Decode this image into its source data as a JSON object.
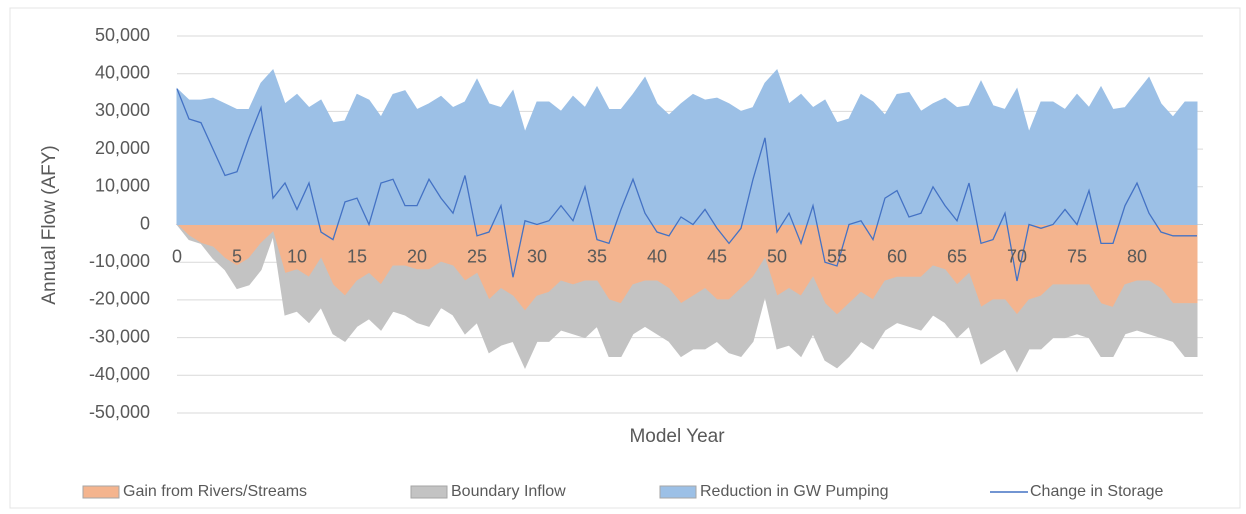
{
  "chart_data": {
    "type": "area",
    "y_label": "Annual Flow (AFY)",
    "x_label": "Model Year",
    "x": [
      0,
      1,
      2,
      3,
      4,
      5,
      6,
      7,
      8,
      9,
      10,
      11,
      12,
      13,
      14,
      15,
      16,
      17,
      18,
      19,
      20,
      21,
      22,
      23,
      24,
      25,
      26,
      27,
      28,
      29,
      30,
      31,
      32,
      33,
      34,
      35,
      36,
      37,
      38,
      39,
      40,
      41,
      42,
      43,
      44,
      45,
      46,
      47,
      48,
      49,
      50,
      51,
      52,
      53,
      54,
      55,
      56,
      57,
      58,
      59,
      60,
      61,
      62,
      63,
      64,
      65,
      66,
      67,
      68,
      69,
      70,
      71,
      72,
      73,
      74,
      75,
      76,
      77,
      78,
      79,
      80,
      81,
      82,
      83,
      84,
      85
    ],
    "xlim": [
      0,
      85
    ],
    "xticks": [
      0,
      5,
      10,
      15,
      20,
      25,
      30,
      35,
      40,
      45,
      50,
      55,
      60,
      65,
      70,
      75,
      80
    ],
    "ylim": [
      -50000,
      50000
    ],
    "yticks": [
      {
        "value": -50000,
        "label": "-50,000"
      },
      {
        "value": -40000,
        "label": "-40,000"
      },
      {
        "value": -30000,
        "label": "-30,000"
      },
      {
        "value": -20000,
        "label": "-20,000"
      },
      {
        "value": -10000,
        "label": "-10,000"
      },
      0,
      {
        "value": 10000,
        "label": "10,000"
      },
      {
        "value": 20000,
        "label": "20,000"
      },
      {
        "value": 30000,
        "label": "30,000"
      },
      {
        "value": 40000,
        "label": "40,000"
      },
      {
        "value": 50000,
        "label": "50,000"
      }
    ],
    "grid": true,
    "legend": "bottom",
    "series": [
      {
        "name": "Gain from Rivers/Streams",
        "color": "#f4b48e",
        "stack": "negative",
        "values": [
          0,
          -3000,
          -5000,
          -6000,
          -9000,
          -11000,
          -9000,
          -5000,
          -2000,
          -13000,
          -12000,
          -14000,
          -9000,
          -16000,
          -19000,
          -15000,
          -13000,
          -16000,
          -11000,
          -11000,
          -12000,
          -12000,
          -10000,
          -11000,
          -15000,
          -13000,
          -20000,
          -17000,
          -19000,
          -23000,
          -19000,
          -18000,
          -15000,
          -16000,
          -15000,
          -15000,
          -20000,
          -21000,
          -16000,
          -15000,
          -15000,
          -17000,
          -21000,
          -19000,
          -17000,
          -20000,
          -20000,
          -17000,
          -14000,
          -9000,
          -19000,
          -17000,
          -19000,
          -14000,
          -21000,
          -24000,
          -21000,
          -18000,
          -20000,
          -15000,
          -14000,
          -14000,
          -14000,
          -11000,
          -12000,
          -16000,
          -13000,
          -22000,
          -20000,
          -20000,
          -24000,
          -20000,
          -19000,
          -16000,
          -16000,
          -16000,
          -16000,
          -21000,
          -22000,
          -16000,
          -15000,
          -15000,
          -17000,
          -21000,
          -21000,
          -21000
        ]
      },
      {
        "name": "Boundary Inflow",
        "color": "#c3c3c3",
        "stack": "negative",
        "values": [
          0,
          -1000,
          0,
          -3000,
          -3000,
          -6000,
          -7000,
          -7000,
          -1000,
          -11000,
          -11000,
          -12000,
          -13000,
          -13000,
          -12000,
          -12000,
          -12000,
          -12000,
          -12000,
          -13000,
          -14000,
          -15000,
          -12000,
          -13000,
          -14000,
          -13000,
          -14000,
          -15000,
          -12000,
          -15000,
          -12000,
          -13000,
          -13000,
          -13000,
          -15000,
          -12000,
          -15000,
          -14000,
          -13000,
          -12000,
          -14000,
          -14000,
          -14000,
          -14000,
          -16000,
          -11000,
          -14000,
          -18000,
          -17000,
          -10000,
          -14000,
          -15000,
          -16000,
          -15000,
          -15000,
          -14000,
          -14000,
          -13000,
          -13000,
          -13000,
          -12000,
          -13000,
          -14000,
          -13000,
          -14000,
          -14000,
          -14000,
          -15000,
          -15000,
          -13000,
          -15000,
          -13000,
          -14000,
          -14000,
          -14000,
          -13000,
          -14000,
          -14000,
          -13000,
          -13000,
          -13000,
          -14000,
          -13000,
          -10000,
          -14000,
          -14000
        ]
      },
      {
        "name": "Reduction in GW Pumping",
        "color": "#9cc0e6",
        "stack": "positive",
        "values": [
          36000,
          33000,
          33000,
          33500,
          32000,
          30500,
          30500,
          37500,
          41000,
          32000,
          34500,
          31000,
          33000,
          27000,
          27500,
          34500,
          33000,
          28500,
          34500,
          35500,
          30500,
          32000,
          34000,
          31000,
          32500,
          38500,
          32000,
          31000,
          35500,
          24500,
          32500,
          32500,
          30000,
          34000,
          31000,
          36500,
          30500,
          30500,
          34500,
          39000,
          32000,
          29000,
          32000,
          34500,
          33000,
          33500,
          32000,
          30000,
          31000,
          37500,
          41000,
          32000,
          34500,
          31000,
          33000,
          27000,
          28000,
          34500,
          32500,
          29000,
          34500,
          35000,
          30000,
          32000,
          33500,
          31000,
          31500,
          38000,
          31500,
          30500,
          36000,
          24500,
          32500,
          32500,
          30500,
          34500,
          31000,
          36500,
          30500,
          31000,
          35000,
          39000,
          32000,
          28500,
          32500,
          32500
        ]
      },
      {
        "name": "Change in Storage",
        "color": "#4472c4",
        "draw": "line",
        "values": [
          36000,
          28000,
          27000,
          20000,
          13000,
          14000,
          23000,
          31000,
          7000,
          11000,
          4000,
          11000,
          -2000,
          -4000,
          6000,
          7000,
          0,
          11000,
          12000,
          5000,
          5000,
          12000,
          7000,
          3000,
          13000,
          -3000,
          -2000,
          5000,
          -14000,
          1000,
          0,
          1000,
          5000,
          1000,
          10000,
          -4000,
          -5000,
          4000,
          12000,
          3000,
          -2000,
          -3000,
          2000,
          0,
          4000,
          -1000,
          -5000,
          -1000,
          12000,
          23000,
          -2000,
          3000,
          -5000,
          5000,
          -10000,
          -11000,
          0,
          1000,
          -4000,
          7000,
          9000,
          2000,
          3000,
          10000,
          5000,
          1000,
          11000,
          -5000,
          -4000,
          3000,
          -15000,
          0,
          -1000,
          0,
          4000,
          0,
          9000,
          -5000,
          -5000,
          5000,
          11000,
          3000,
          -2000,
          -3000,
          -3000,
          -3000
        ]
      }
    ]
  }
}
